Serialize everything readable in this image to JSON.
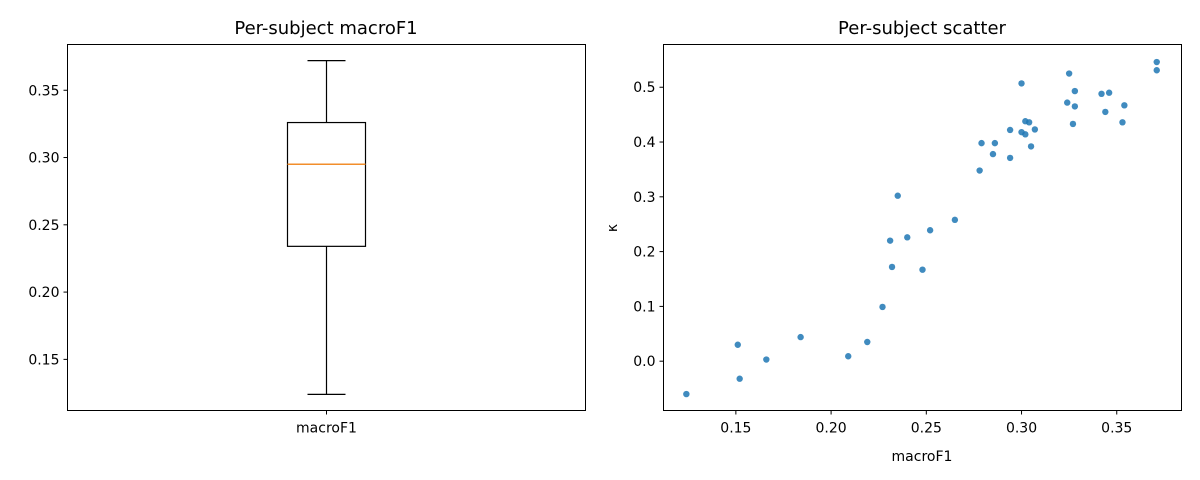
{
  "chart_data": [
    {
      "type": "box",
      "title": "Per-subject macroF1",
      "xlabel": "",
      "ylabel": "",
      "categories": [
        "macroF1"
      ],
      "box": {
        "whisker_low": 0.124,
        "q1": 0.234,
        "median": 0.295,
        "q3": 0.326,
        "whisker_high": 0.372
      },
      "ylim": [
        0.112,
        0.384
      ],
      "yticks": [
        0.15,
        0.2,
        0.25,
        0.3,
        0.35
      ],
      "ytick_labels": [
        "0.15",
        "0.20",
        "0.25",
        "0.30",
        "0.35"
      ],
      "grid": false,
      "colors": {
        "box": "#000000",
        "median": "#f28e2b"
      }
    },
    {
      "type": "scatter",
      "title": "Per-subject scatter",
      "xlabel": "macroF1",
      "ylabel": "κ",
      "xlim": [
        0.112,
        0.384
      ],
      "ylim": [
        -0.09,
        0.578
      ],
      "xticks": [
        0.15,
        0.2,
        0.25,
        0.3,
        0.35
      ],
      "xtick_labels": [
        "0.15",
        "0.20",
        "0.25",
        "0.30",
        "0.35"
      ],
      "yticks": [
        0.0,
        0.1,
        0.2,
        0.3,
        0.4,
        0.5
      ],
      "ytick_labels": [
        "0.0",
        "0.1",
        "0.2",
        "0.3",
        "0.4",
        "0.5"
      ],
      "grid": false,
      "colors": {
        "points": "#1f77b4"
      },
      "x": [
        0.124,
        0.151,
        0.152,
        0.166,
        0.184,
        0.209,
        0.219,
        0.227,
        0.231,
        0.232,
        0.235,
        0.24,
        0.248,
        0.252,
        0.265,
        0.278,
        0.279,
        0.285,
        0.286,
        0.294,
        0.294,
        0.3,
        0.3,
        0.302,
        0.302,
        0.304,
        0.305,
        0.307,
        0.324,
        0.325,
        0.327,
        0.328,
        0.328,
        0.342,
        0.344,
        0.346,
        0.353,
        0.354,
        0.371,
        0.371
      ],
      "y": [
        -0.06,
        0.03,
        -0.032,
        0.003,
        0.044,
        0.009,
        0.035,
        0.099,
        0.22,
        0.172,
        0.302,
        0.226,
        0.167,
        0.239,
        0.258,
        0.348,
        0.398,
        0.378,
        0.398,
        0.422,
        0.371,
        0.507,
        0.418,
        0.438,
        0.414,
        0.436,
        0.392,
        0.423,
        0.472,
        0.525,
        0.433,
        0.465,
        0.493,
        0.488,
        0.455,
        0.49,
        0.436,
        0.467,
        0.531,
        0.546
      ]
    }
  ]
}
